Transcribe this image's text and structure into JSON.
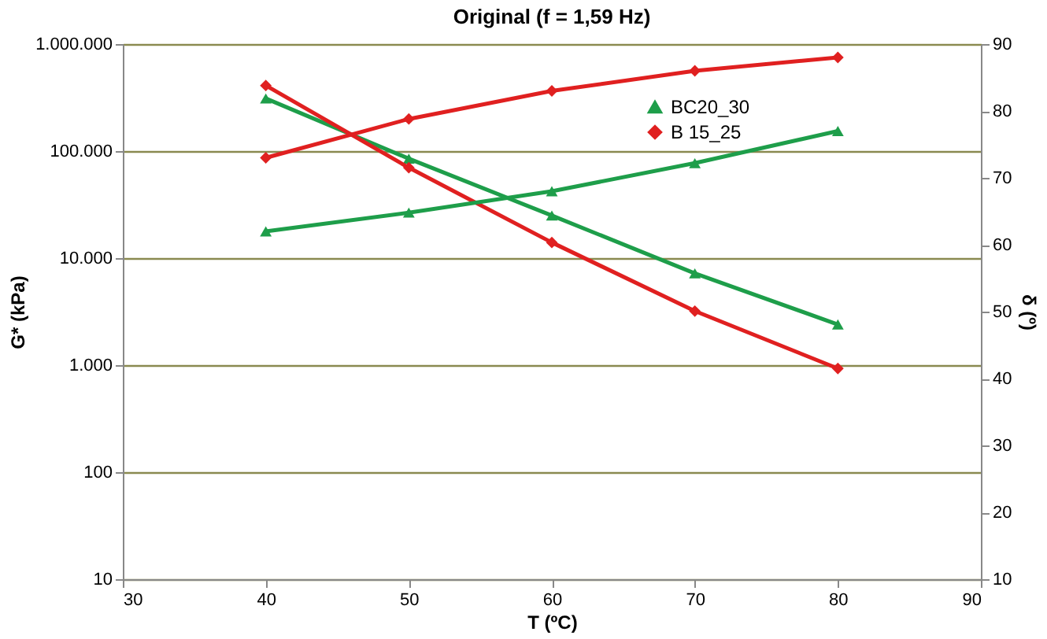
{
  "chart_data": {
    "type": "line",
    "title": "Original (f = 1,59 Hz)",
    "xlabel": "T (ºC)",
    "ylabel": "G* (kPa)",
    "y2label": "δ (º)",
    "x": [
      40,
      50,
      60,
      70,
      80
    ],
    "series": [
      {
        "name": "BC20_30",
        "color": "#1e9e4a",
        "marker": "triangle",
        "values": [
          310000,
          85000,
          25000,
          7200,
          2400
        ]
      },
      {
        "name": "B 15_25",
        "color": "#e02020",
        "marker": "diamond",
        "values": [
          410000,
          70000,
          14000,
          3200,
          930
        ]
      },
      {
        "color": "#1e9e4a",
        "marker": "triangle",
        "axis": "y2",
        "values": [
          62,
          64.8,
          68,
          72.2,
          77
        ]
      },
      {
        "color": "#e02020",
        "marker": "diamond",
        "axis": "y2",
        "values": [
          73,
          78.8,
          83,
          86,
          88
        ]
      }
    ],
    "xlim": [
      30,
      90
    ],
    "xticks": [
      30,
      40,
      50,
      60,
      70,
      80,
      90
    ],
    "log": "y",
    "ylim": [
      10,
      1000000
    ],
    "yticks": [
      10,
      100,
      {
        "value": 1000,
        "label": "1.000"
      },
      {
        "value": 10000,
        "label": "10.000"
      },
      {
        "value": 100000,
        "label": "100.000"
      },
      {
        "value": 1000000,
        "label": "1.000.000"
      }
    ],
    "y2lim": [
      10,
      90
    ],
    "y2ticks": [
      10,
      20,
      30,
      40,
      50,
      60,
      70,
      80,
      90
    ],
    "grid": "y",
    "legend": "top right",
    "line_style": "solid"
  }
}
